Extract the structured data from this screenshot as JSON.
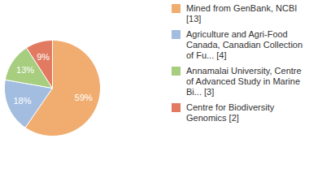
{
  "chart_data": {
    "type": "pie",
    "categories": [
      "Mined from GenBank, NCBI [13]",
      "Agriculture and Agri-Food Canada, Canadian Collection of Fu... [4]",
      "Annamalai University, Centre of Advanced Study in Marine Bi... [3]",
      "Centre for Biodiversity Genomics [2]"
    ],
    "values": [
      59,
      18,
      13,
      9
    ],
    "value_labels": [
      "59%",
      "18%",
      "13%",
      "9%"
    ],
    "colors": [
      "#f0ad6f",
      "#a2bde0",
      "#a7cd7f",
      "#e17a61"
    ],
    "data_labels": true,
    "legend": "top-right"
  }
}
